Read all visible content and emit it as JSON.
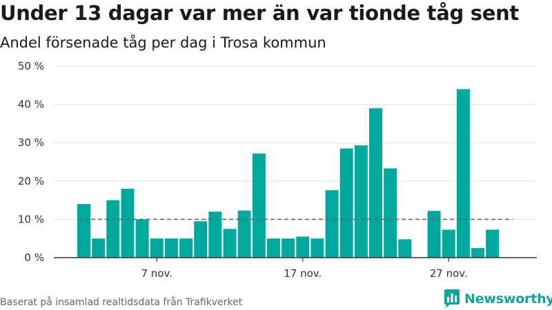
{
  "title": "Under 13 dagar var mer än var tionde tåg sent",
  "subtitle": "Andel försenade tåg per dag i Trosa kommun",
  "source": "Baserat på insamlad realtidsdata från Trafikverket",
  "brand": {
    "name": "Newsworthy",
    "color": "#12a39a"
  },
  "colors": {
    "bar": "#00a99d",
    "reference_line": "#666666",
    "grid": "#e0e0e0",
    "axis": "#333333"
  },
  "chart_data": {
    "type": "bar",
    "ylim": [
      0,
      50
    ],
    "yticks": [
      0,
      10,
      20,
      30,
      40,
      50
    ],
    "ytick_labels": [
      "0 %",
      "10 %",
      "20 %",
      "30 %",
      "40 %",
      "50 %"
    ],
    "reference_line": 10,
    "xticks": [
      {
        "day": 7,
        "label": "7 nov."
      },
      {
        "day": 17,
        "label": "17 nov."
      },
      {
        "day": 27,
        "label": "27 nov."
      }
    ],
    "x_range": [
      0,
      30
    ],
    "bars": [
      {
        "day": 2,
        "value": 14
      },
      {
        "day": 3,
        "value": 5
      },
      {
        "day": 4,
        "value": 15
      },
      {
        "day": 5,
        "value": 18
      },
      {
        "day": 6,
        "value": 10
      },
      {
        "day": 7,
        "value": 5
      },
      {
        "day": 8,
        "value": 5
      },
      {
        "day": 9,
        "value": 5
      },
      {
        "day": 10,
        "value": 9.5
      },
      {
        "day": 11,
        "value": 12
      },
      {
        "day": 12,
        "value": 7.5
      },
      {
        "day": 13,
        "value": 12.3
      },
      {
        "day": 14,
        "value": 27.2
      },
      {
        "day": 15,
        "value": 5
      },
      {
        "day": 16,
        "value": 5
      },
      {
        "day": 17,
        "value": 5.5
      },
      {
        "day": 18,
        "value": 5
      },
      {
        "day": 19,
        "value": 17.6
      },
      {
        "day": 20,
        "value": 28.5
      },
      {
        "day": 21,
        "value": 29.3
      },
      {
        "day": 22,
        "value": 39
      },
      {
        "day": 23,
        "value": 23.3
      },
      {
        "day": 24,
        "value": 4.8
      },
      {
        "day": 26,
        "value": 12.2
      },
      {
        "day": 27,
        "value": 7.3
      },
      {
        "day": 28,
        "value": 44
      },
      {
        "day": 29,
        "value": 2.5
      },
      {
        "day": 30,
        "value": 7.3
      }
    ]
  }
}
